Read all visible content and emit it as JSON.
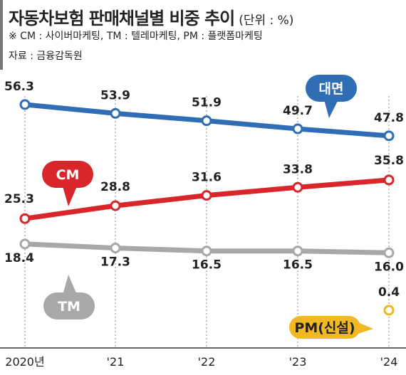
{
  "header": {
    "title": "자동차보험 판매채널별 비중 추이",
    "unit": "(단위 : %)",
    "note": "※ CM : 사이버마케팅, TM : 텔레마케팅, PM : 플랫폼마케팅",
    "source": "자료 : 금융감독원"
  },
  "chart_data": {
    "type": "line",
    "categories": [
      "2020년",
      "'21",
      "'22",
      "'23",
      "'24"
    ],
    "series": [
      {
        "name": "대면",
        "color": "#2f6db5",
        "values": [
          56.3,
          53.9,
          51.9,
          49.7,
          47.8
        ]
      },
      {
        "name": "CM",
        "color": "#d9262b",
        "values": [
          25.3,
          28.8,
          31.6,
          33.8,
          35.8
        ]
      },
      {
        "name": "TM",
        "color": "#a8a8a8",
        "values": [
          18.4,
          17.3,
          16.5,
          16.5,
          16.0
        ]
      },
      {
        "name": "PM(신설)",
        "color": "#f2b824",
        "values": [
          null,
          null,
          null,
          null,
          0.4
        ]
      }
    ],
    "value_labels": {
      "대면": [
        "56.3",
        "53.9",
        "51.9",
        "49.7",
        "47.8"
      ],
      "CM": [
        "25.3",
        "28.8",
        "31.6",
        "33.8",
        "35.8"
      ],
      "TM": [
        "18.4",
        "17.3",
        "16.5",
        "16.5",
        "16.0"
      ],
      "PM(신설)": [
        null,
        null,
        null,
        null,
        "0.4"
      ]
    },
    "grid": "vertical dotted",
    "legend": "callout labels beside each line"
  }
}
